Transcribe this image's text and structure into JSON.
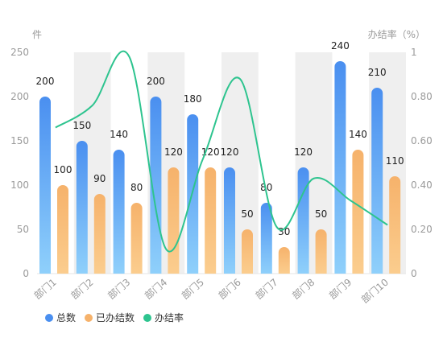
{
  "chart_data": {
    "type": "bar",
    "categories": [
      "部门1",
      "部门2",
      "部门3",
      "部门4",
      "部门5",
      "部门6",
      "部门7",
      "部门8",
      "部门9",
      "部门10"
    ],
    "series": [
      {
        "name": "总数",
        "type": "bar",
        "axis": "left",
        "values": [
          200,
          150,
          140,
          200,
          180,
          120,
          80,
          120,
          240,
          210
        ]
      },
      {
        "name": "已办结数",
        "type": "bar",
        "axis": "left",
        "values": [
          100,
          90,
          80,
          120,
          120,
          50,
          30,
          50,
          140,
          110
        ]
      },
      {
        "name": "办结率",
        "type": "line",
        "axis": "right",
        "smooth": true,
        "values": [
          0.66,
          0.76,
          0.98,
          0.11,
          0.52,
          0.88,
          0.21,
          0.43,
          0.33,
          0.22
        ]
      }
    ],
    "y_left": {
      "label": "件",
      "range": [
        0,
        250
      ],
      "ticks": [
        "0",
        "50",
        "100",
        "150",
        "200",
        "250"
      ]
    },
    "y_right": {
      "label": "办结率（%）",
      "range": [
        0,
        1
      ],
      "ticks": [
        "0",
        "0.20",
        "0.40",
        "0.60",
        "0.80",
        "1"
      ]
    },
    "legend_position": "bottom-left",
    "colors": {
      "total_top": "#4a8ff0",
      "total_bottom": "#8fd0fb",
      "done_top": "#f6b26b",
      "done_bottom": "#fbcd8e",
      "rate": "#2ec48f",
      "band": "#efefef",
      "axis_text": "#9a9a9a",
      "label_text": "#222222"
    }
  }
}
